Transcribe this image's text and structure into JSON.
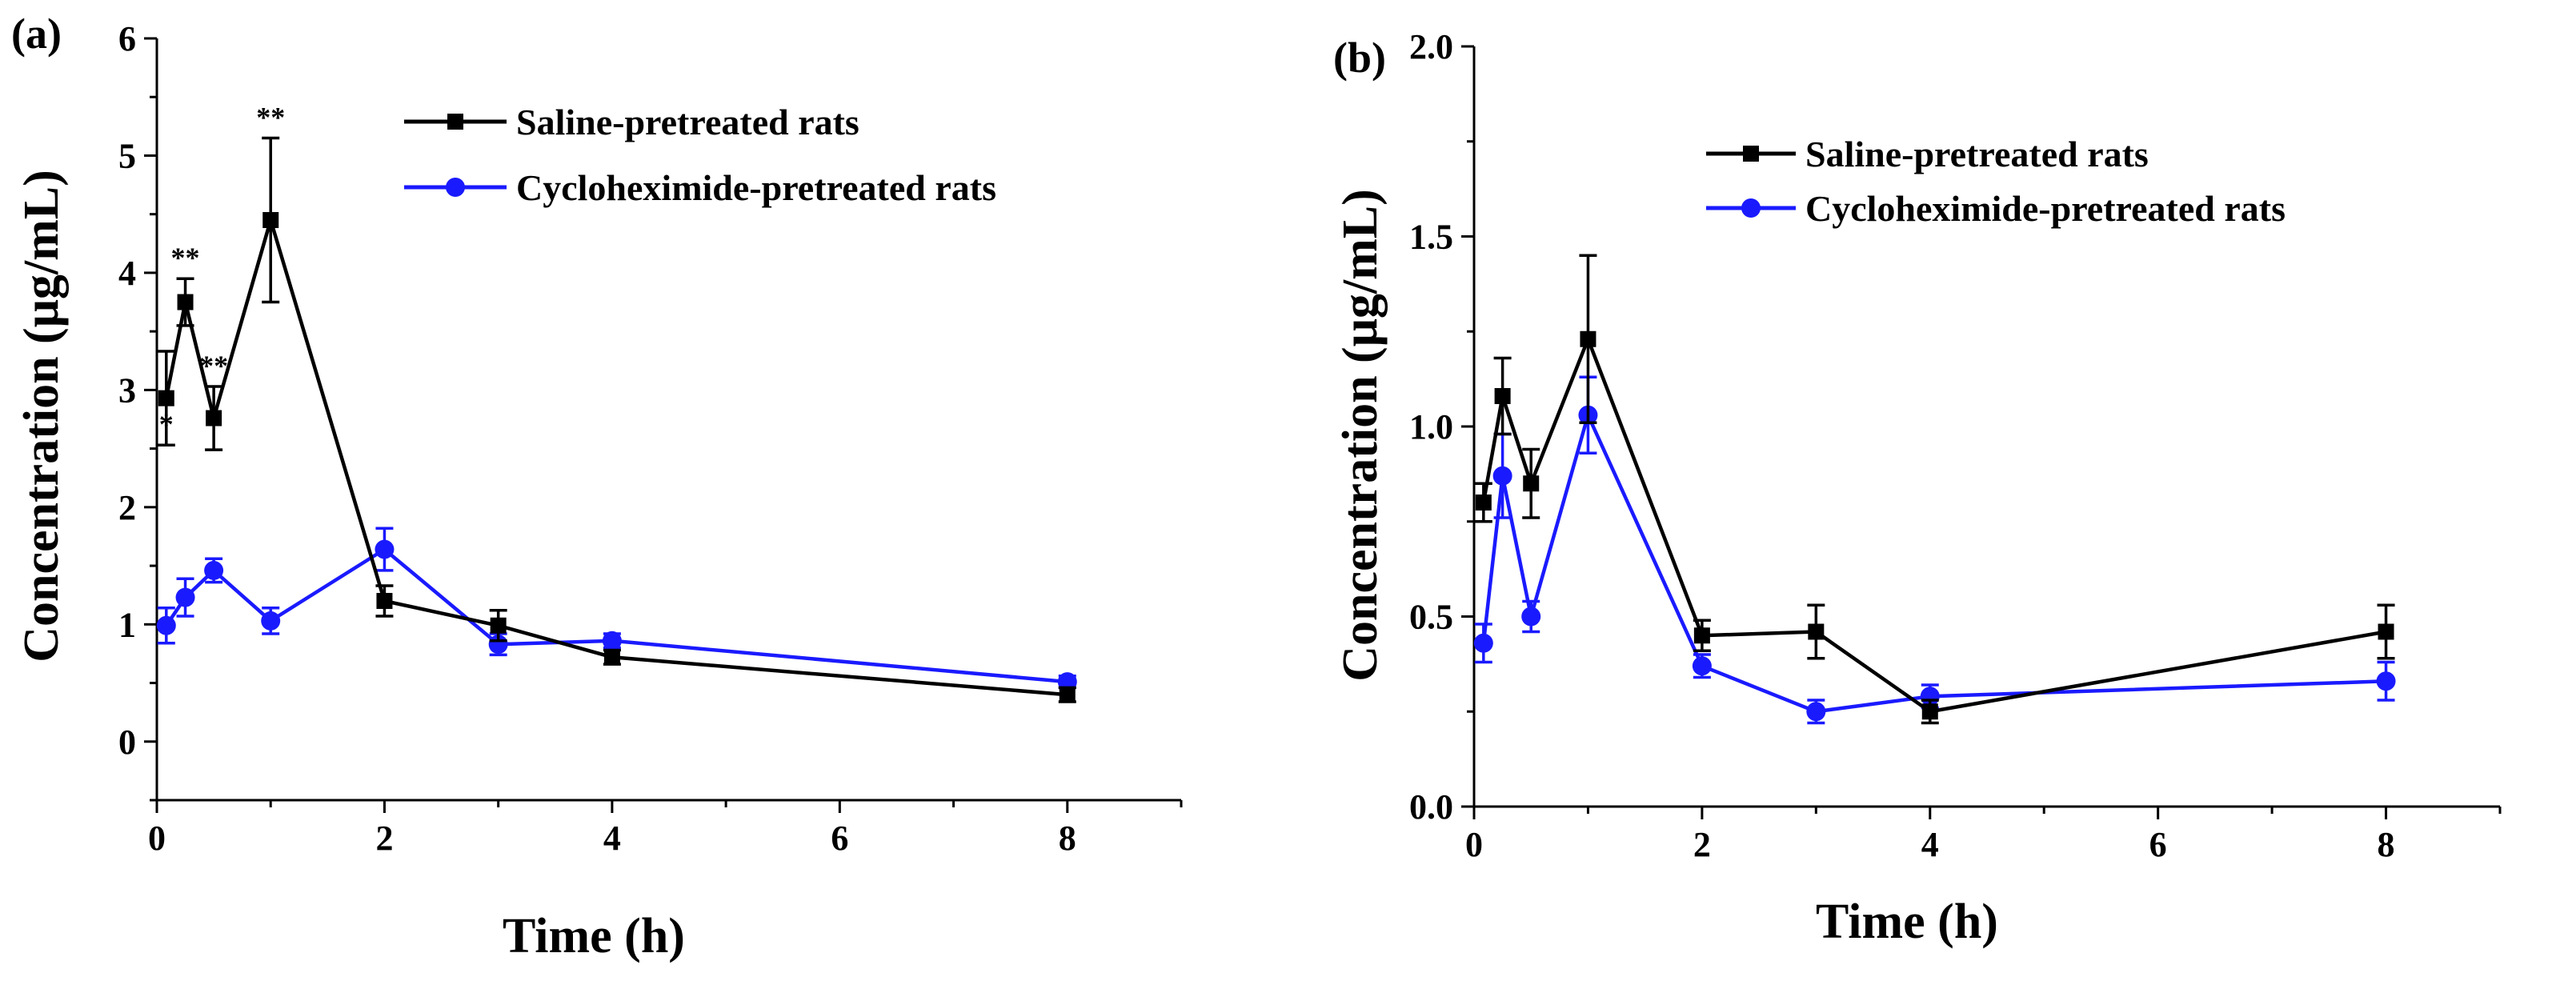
{
  "chart_data": [
    {
      "type": "line",
      "panel_label": "(a)",
      "xlabel": "Time (h)",
      "ylabel": "Concentration (μg/mL)",
      "xlim": [
        0,
        9
      ],
      "ylim": [
        -0.5,
        6
      ],
      "xticks": [
        0,
        2,
        4,
        6,
        8
      ],
      "xtick_labels": [
        "0",
        "2",
        "4",
        "6",
        "8"
      ],
      "yticks": [
        0,
        1,
        2,
        3,
        4,
        5,
        6
      ],
      "ytick_labels": [
        "0",
        "1",
        "2",
        "3",
        "4",
        "5",
        "6"
      ],
      "legend_position": "top-right",
      "x": [
        0.083,
        0.25,
        0.5,
        1,
        2,
        3,
        4,
        8
      ],
      "series": [
        {
          "name": "Saline-pretreated rats",
          "color": "#000000",
          "marker": "square",
          "values": [
            2.93,
            3.75,
            2.76,
            4.45,
            1.2,
            0.99,
            0.72,
            0.4
          ],
          "errors": [
            0.4,
            0.2,
            0.27,
            0.7,
            0.13,
            0.13,
            0.06,
            0.06
          ]
        },
        {
          "name": "Cycloheximide-pretreated rats",
          "color": "#1a1aff",
          "marker": "circle",
          "values": [
            0.99,
            1.23,
            1.46,
            1.03,
            1.64,
            0.83,
            0.86,
            0.51
          ],
          "errors": [
            0.15,
            0.16,
            0.1,
            0.11,
            0.18,
            0.09,
            0.06,
            0.05
          ]
        }
      ],
      "annotations": [
        {
          "text": "*",
          "x": 0.083,
          "y": 2.53,
          "series": 0
        },
        {
          "text": "**",
          "x": 0.25,
          "y": 3.95,
          "series": 0
        },
        {
          "text": "**",
          "x": 0.5,
          "y": 3.03,
          "series": 0
        },
        {
          "text": "**",
          "x": 1,
          "y": 5.15,
          "series": 0
        }
      ]
    },
    {
      "type": "line",
      "panel_label": "(b)",
      "xlabel": "Time (h)",
      "ylabel": "Concentration (μg/mL)",
      "xlim": [
        0,
        9
      ],
      "ylim": [
        0,
        2
      ],
      "xticks": [
        0,
        2,
        4,
        6,
        8
      ],
      "xtick_labels": [
        "0",
        "2",
        "4",
        "6",
        "8"
      ],
      "yticks": [
        0,
        0.5,
        1,
        1.5,
        2
      ],
      "ytick_labels": [
        "0.0",
        "0.5",
        "1.0",
        "1.5",
        "2.0"
      ],
      "legend_position": "top-right",
      "x": [
        0.083,
        0.25,
        0.5,
        1,
        2,
        3,
        4,
        8
      ],
      "series": [
        {
          "name": "Saline-pretreated rats",
          "color": "#000000",
          "marker": "square",
          "values": [
            0.8,
            1.08,
            0.85,
            1.23,
            0.45,
            0.46,
            0.25,
            0.46
          ],
          "errors": [
            0.05,
            0.1,
            0.09,
            0.22,
            0.04,
            0.07,
            0.03,
            0.07
          ]
        },
        {
          "name": "Cycloheximide-pretreated rats",
          "color": "#1a1aff",
          "marker": "circle",
          "values": [
            0.43,
            0.87,
            0.5,
            1.03,
            0.37,
            0.25,
            0.29,
            0.33
          ],
          "errors": [
            0.05,
            0.11,
            0.04,
            0.1,
            0.03,
            0.03,
            0.03,
            0.05
          ]
        }
      ],
      "annotations": []
    }
  ]
}
